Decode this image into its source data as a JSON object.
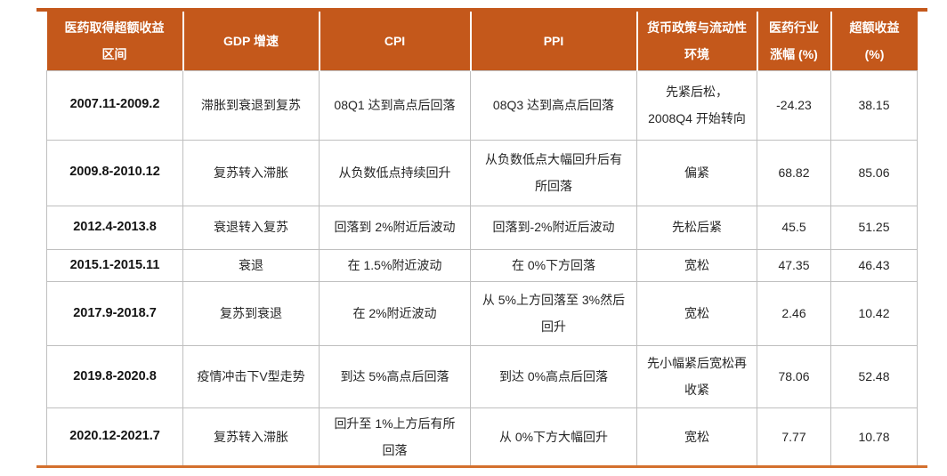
{
  "figure": {
    "kind": "data-table",
    "description_visible": ""
  },
  "colors": {
    "header_bg": "#C4581B",
    "header_text": "#FFFFFF",
    "grid_line": "#BFBFBF",
    "body_text": "#262626",
    "top_rule": "#C4581B",
    "bottom_rule": "#D4702E",
    "page_bg": "#FFFFFF"
  },
  "chart_data": {
    "type": "table",
    "columns": [
      {
        "key": "period",
        "label": "医药取得超额收益\n区间"
      },
      {
        "key": "gdp",
        "label": "GDP 增速"
      },
      {
        "key": "cpi",
        "label": "CPI"
      },
      {
        "key": "ppi",
        "label": "PPI"
      },
      {
        "key": "policy",
        "label": "货币政策与流动性\n环境"
      },
      {
        "key": "industry_gain",
        "label": "医药行业\n涨幅 (%)"
      },
      {
        "key": "excess_return",
        "label": "超额收益\n(%)"
      }
    ],
    "rows": [
      {
        "period": "2007.11-2009.2",
        "gdp": "滞胀到衰退到复苏",
        "cpi": "08Q1 达到高点后回落",
        "ppi": "08Q3 达到高点后回落",
        "policy": "先紧后松，\n2008Q4 开始转向",
        "industry_gain": "-24.23",
        "excess_return": "38.15"
      },
      {
        "period": "2009.8-2010.12",
        "gdp": "复苏转入滞胀",
        "cpi": "从负数低点持续回升",
        "ppi": "从负数低点大幅回升后有\n所回落",
        "policy": "偏紧",
        "industry_gain": "68.82",
        "excess_return": "85.06"
      },
      {
        "period": "2012.4-2013.8",
        "gdp": "衰退转入复苏",
        "cpi": "回落到 2%附近后波动",
        "ppi": "回落到-2%附近后波动",
        "policy": "先松后紧",
        "industry_gain": "45.5",
        "excess_return": "51.25"
      },
      {
        "period": "2015.1-2015.11",
        "gdp": "衰退",
        "cpi": "在 1.5%附近波动",
        "ppi": "在 0%下方回落",
        "policy": "宽松",
        "industry_gain": "47.35",
        "excess_return": "46.43"
      },
      {
        "period": "2017.9-2018.7",
        "gdp": "复苏到衰退",
        "cpi": "在 2%附近波动",
        "ppi": "从 5%上方回落至 3%然后\n回升",
        "policy": "宽松",
        "industry_gain": "2.46",
        "excess_return": "10.42"
      },
      {
        "period": "2019.8-2020.8",
        "gdp": "疫情冲击下V型走势",
        "cpi": "到达 5%高点后回落",
        "ppi": "到达 0%高点后回落",
        "policy": "先小幅紧后宽松再\n收紧",
        "industry_gain": "78.06",
        "excess_return": "52.48"
      },
      {
        "period": "2020.12-2021.7",
        "gdp": "复苏转入滞胀",
        "cpi": "回升至 1%上方后有所\n回落",
        "ppi": "从 0%下方大幅回升",
        "policy": "宽松",
        "industry_gain": "7.77",
        "excess_return": "10.78"
      }
    ]
  }
}
